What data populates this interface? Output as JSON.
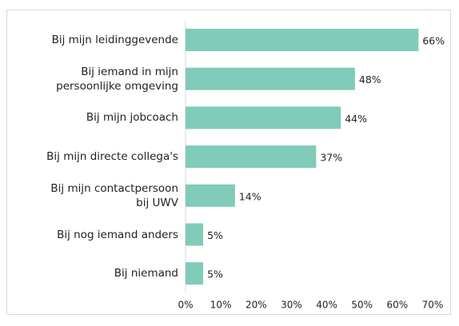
{
  "chart_data": {
    "type": "bar",
    "orientation": "horizontal",
    "categories": [
      "Bij mijn leidinggevende",
      "Bij iemand in mijn\npersoonlijke omgeving",
      "Bij mijn jobcoach",
      "Bij mijn directe collega's",
      "Bij mijn contactpersoon\nbij UWV",
      "Bij nog iemand anders",
      "Bij niemand"
    ],
    "values": [
      66,
      48,
      44,
      37,
      14,
      5,
      5
    ],
    "value_labels": [
      "66%",
      "48%",
      "44%",
      "37%",
      "14%",
      "5%",
      "5%"
    ],
    "color": "#80cbb9",
    "xlim": [
      0,
      70
    ],
    "xticks": [
      {
        "value": 0,
        "label": "0%"
      },
      {
        "value": 10,
        "label": "10%"
      },
      {
        "value": 20,
        "label": "20%"
      },
      {
        "value": 30,
        "label": "30%"
      },
      {
        "value": 40,
        "label": "40%"
      },
      {
        "value": 50,
        "label": "50%"
      },
      {
        "value": 60,
        "label": "60%"
      },
      {
        "value": 70,
        "label": "70%"
      }
    ],
    "grid": false
  }
}
